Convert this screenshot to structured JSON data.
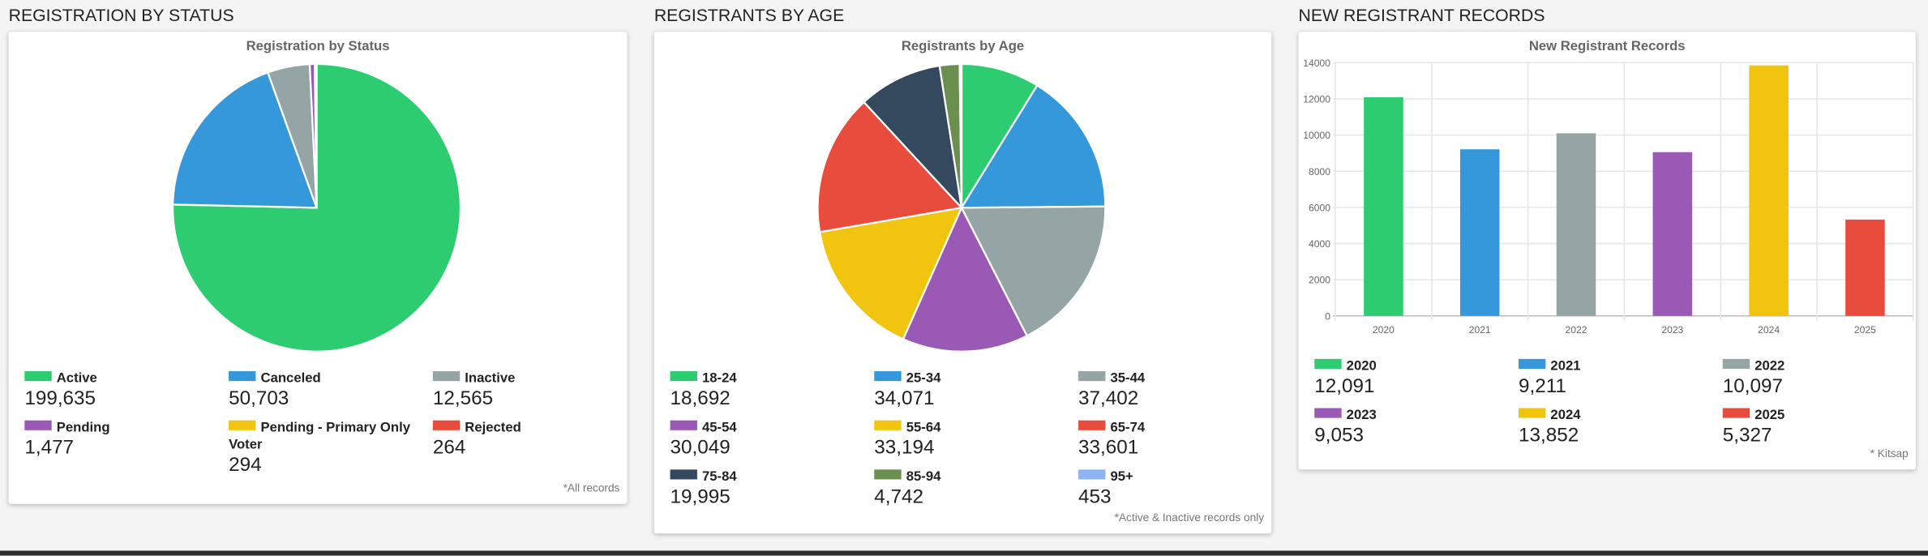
{
  "chart_data": [
    {
      "type": "pie",
      "heading": "REGISTRATION BY STATUS",
      "title": "Registration by Status",
      "categories": [
        "Active",
        "Canceled",
        "Inactive",
        "Pending",
        "Pending - Primary Only Voter",
        "Rejected"
      ],
      "values": [
        199635,
        50703,
        12565,
        1477,
        294,
        264
      ],
      "value_labels": [
        "199,635",
        "50,703",
        "12,565",
        "1,477",
        "294",
        "264"
      ],
      "colors": [
        "#2ecc71",
        "#3498db",
        "#95a5a6",
        "#9b59b6",
        "#f1c40f",
        "#e74c3c"
      ],
      "note": "*All records"
    },
    {
      "type": "pie",
      "heading": "REGISTRANTS BY AGE",
      "title": "Registrants by Age",
      "categories": [
        "18-24",
        "25-34",
        "35-44",
        "45-54",
        "55-64",
        "65-74",
        "75-84",
        "85-94",
        "95+"
      ],
      "values": [
        18692,
        34071,
        37402,
        30049,
        33194,
        33601,
        19995,
        4742,
        453
      ],
      "value_labels": [
        "18,692",
        "34,071",
        "37,402",
        "30,049",
        "33,194",
        "33,601",
        "19,995",
        "4,742",
        "453"
      ],
      "colors": [
        "#2ecc71",
        "#3498db",
        "#95a5a6",
        "#9b59b6",
        "#f1c40f",
        "#e74c3c",
        "#34495e",
        "#6a8f4e",
        "#8fb4f5"
      ],
      "note": "*Active & Inactive records only"
    },
    {
      "type": "bar",
      "heading": "NEW REGISTRANT RECORDS",
      "title": "New Registrant Records",
      "categories": [
        "2020",
        "2021",
        "2022",
        "2023",
        "2024",
        "2025"
      ],
      "values": [
        12091,
        9211,
        10097,
        9053,
        13852,
        5327
      ],
      "value_labels": [
        "12,091",
        "9,211",
        "10,097",
        "9,053",
        "13,852",
        "5,327"
      ],
      "colors": [
        "#2ecc71",
        "#3498db",
        "#95a5a6",
        "#9b59b6",
        "#f1c40f",
        "#e74c3c"
      ],
      "ylim": [
        0,
        14000
      ],
      "yticks": [
        0,
        2000,
        4000,
        6000,
        8000,
        10000,
        12000,
        14000
      ],
      "grid": true,
      "note": "* Kitsap"
    }
  ]
}
